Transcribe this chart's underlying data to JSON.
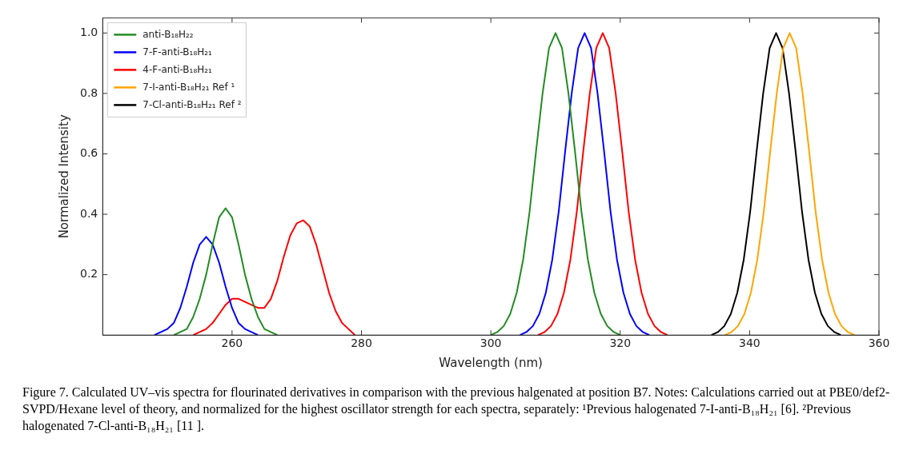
{
  "chart_data": {
    "type": "line",
    "xlabel": "Wavelength (nm)",
    "ylabel": "Normalized Intensity",
    "xlim": [
      240,
      360
    ],
    "xticks": [
      260,
      280,
      300,
      320,
      340,
      360
    ],
    "ylim": [
      0,
      1.05
    ],
    "yticks": [
      0.2,
      0.4,
      0.6,
      0.8,
      {
        "value": 1,
        "label": "1.0"
      }
    ],
    "grid": false,
    "legend": "top left",
    "marker": "none",
    "line_style": "solid",
    "series": [
      {
        "name": "anti-B₁₈H₂₂",
        "color": "#228b22",
        "x": [
          251,
          252,
          253,
          254,
          255,
          256,
          257,
          258,
          259,
          260,
          261,
          262,
          263,
          264,
          265,
          266,
          267,
          268,
          300,
          301,
          302,
          303,
          304,
          305,
          306,
          307,
          308,
          309,
          310,
          311,
          312,
          313,
          314,
          315,
          316,
          317,
          318,
          319,
          320
        ],
        "values": [
          0.0,
          0.01,
          0.02,
          0.06,
          0.12,
          0.2,
          0.3,
          0.39,
          0.42,
          0.39,
          0.3,
          0.2,
          0.12,
          0.06,
          0.02,
          0.01,
          0.0,
          null,
          0.0,
          0.01,
          0.03,
          0.07,
          0.14,
          0.25,
          0.41,
          0.61,
          0.8,
          0.95,
          1.0,
          0.95,
          0.8,
          0.61,
          0.41,
          0.25,
          0.14,
          0.07,
          0.03,
          0.01,
          0.0
        ]
      },
      {
        "name": "7-F-anti-B₁₈H₂₁",
        "color": "#0000ff",
        "x": [
          248,
          249,
          250,
          251,
          252,
          253,
          254,
          255,
          256,
          257,
          258,
          259,
          260,
          261,
          262,
          263,
          264,
          265,
          304.5,
          305.5,
          306.5,
          307.5,
          308.5,
          309.5,
          310.5,
          311.5,
          312.5,
          313.5,
          314.5,
          315.5,
          316.5,
          317.5,
          318.5,
          319.5,
          320.5,
          321.5,
          322.5,
          323.5,
          324.5
        ],
        "values": [
          0.0,
          0.01,
          0.02,
          0.04,
          0.09,
          0.16,
          0.24,
          0.3,
          0.325,
          0.3,
          0.24,
          0.16,
          0.09,
          0.04,
          0.02,
          0.01,
          0.0,
          null,
          0.0,
          0.01,
          0.03,
          0.07,
          0.14,
          0.25,
          0.41,
          0.61,
          0.8,
          0.95,
          1.0,
          0.95,
          0.8,
          0.61,
          0.41,
          0.25,
          0.14,
          0.07,
          0.03,
          0.01,
          0.0
        ]
      },
      {
        "name": "4-F-anti-B₁₈H₂₁",
        "color": "#ff0000",
        "x": [
          254,
          255,
          256,
          257,
          258,
          259,
          260,
          261,
          262,
          263,
          264,
          265,
          266,
          267,
          268,
          269,
          270,
          271,
          272,
          273,
          274,
          275,
          276,
          277,
          278,
          279,
          280,
          307.3,
          308.3,
          309.3,
          310.3,
          311.3,
          312.3,
          313.3,
          314.3,
          315.3,
          316.3,
          317.3,
          318.3,
          319.3,
          320.3,
          321.3,
          322.3,
          323.3,
          324.3,
          325.3,
          326.3,
          327.3
        ],
        "values": [
          0.0,
          0.01,
          0.02,
          0.04,
          0.07,
          0.1,
          0.12,
          0.12,
          0.11,
          0.1,
          0.09,
          0.09,
          0.12,
          0.18,
          0.26,
          0.33,
          0.37,
          0.38,
          0.36,
          0.3,
          0.22,
          0.14,
          0.08,
          0.04,
          0.02,
          0.0,
          null,
          0.0,
          0.01,
          0.03,
          0.07,
          0.14,
          0.25,
          0.41,
          0.61,
          0.8,
          0.95,
          1.0,
          0.95,
          0.8,
          0.61,
          0.41,
          0.25,
          0.14,
          0.07,
          0.03,
          0.01,
          0.0
        ]
      },
      {
        "name": "7-I-anti-B₁₈H₂₁ Ref ¹",
        "color": "#ffa500",
        "x": [
          336.2,
          337.2,
          338.2,
          339.2,
          340.2,
          341.2,
          342.2,
          343.2,
          344.2,
          345.2,
          346.2,
          347.2,
          348.2,
          349.2,
          350.2,
          351.2,
          352.2,
          353.2,
          354.2,
          355.2,
          356.2
        ],
        "values": [
          0.0,
          0.01,
          0.03,
          0.07,
          0.14,
          0.25,
          0.41,
          0.61,
          0.8,
          0.95,
          1.0,
          0.95,
          0.8,
          0.61,
          0.41,
          0.25,
          0.14,
          0.07,
          0.03,
          0.01,
          0.0
        ]
      },
      {
        "name": "7-Cl-anti-B₁₈H₂₁ Ref ²",
        "color": "#000000",
        "x": [
          334.1,
          335.1,
          336.1,
          337.1,
          338.1,
          339.1,
          340.1,
          341.1,
          342.1,
          343.1,
          344.1,
          345.1,
          346.1,
          347.1,
          348.1,
          349.1,
          350.1,
          351.1,
          352.1,
          353.1,
          354.1
        ],
        "values": [
          0.0,
          0.01,
          0.03,
          0.07,
          0.14,
          0.25,
          0.41,
          0.61,
          0.8,
          0.95,
          1.0,
          0.95,
          0.8,
          0.61,
          0.41,
          0.25,
          0.14,
          0.07,
          0.03,
          0.01,
          0.0
        ]
      }
    ],
    "annotations": [
      "Figure 7. Calculated UV–vis spectra for flourinated derivatives in comparison with the previous halgenated at position B7. Notes: Calculations carried out at PBE0/def2-SVPD/Hexane level of theory, and normalized for the highest oscillator strength for each spectra, separately: ¹Previous halogenated 7-I-anti-B₁₈H₂₁ [6]. ²Previous halogenated 7-Cl-anti-B₁₈H₂₁ [11 ]."
    ]
  }
}
